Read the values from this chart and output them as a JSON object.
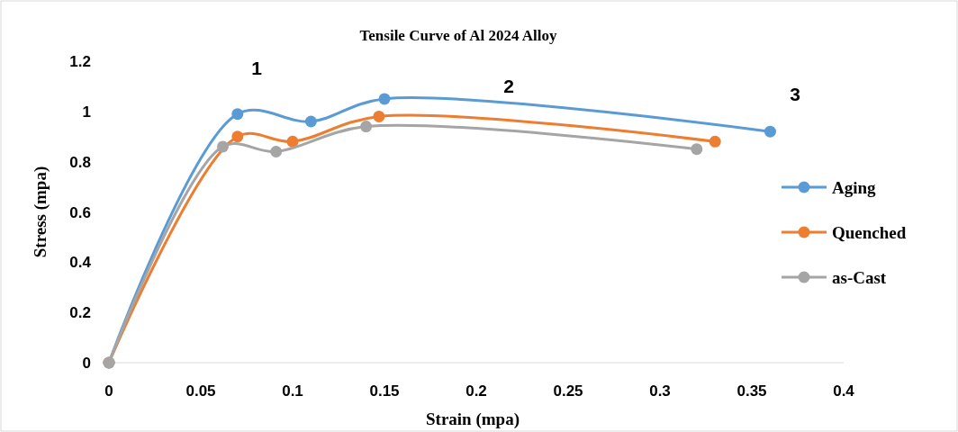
{
  "chart_data": {
    "type": "line",
    "title": "Tensile Curve of Al 2024 Alloy",
    "xlabel": "Strain (mpa)",
    "ylabel": "Stress (mpa)",
    "xlim": [
      0,
      0.4
    ],
    "xticks": [
      0,
      0.05,
      0.1,
      0.15,
      0.2,
      0.25,
      0.3,
      0.35,
      0.4
    ],
    "ylim": [
      0,
      1.2
    ],
    "yticks": [
      0,
      0.2,
      0.4,
      0.6,
      0.8,
      1,
      1.2
    ],
    "grid": false,
    "legend": "right",
    "marker": "circle",
    "line_style": "solid",
    "series": [
      {
        "name": "Aging",
        "color": "#5b9bd5",
        "x": [
          0,
          0.07,
          0.11,
          0.15,
          0.36
        ],
        "values": [
          0,
          0.99,
          0.96,
          1.05,
          0.92
        ]
      },
      {
        "name": "Quenched",
        "color": "#ed7d31",
        "x": [
          0,
          0.07,
          0.1,
          0.147,
          0.33
        ],
        "values": [
          0,
          0.9,
          0.88,
          0.98,
          0.88
        ]
      },
      {
        "name": "as-Cast",
        "color": "#a5a5a5",
        "x": [
          0,
          0.062,
          0.091,
          0.14,
          0.32
        ],
        "values": [
          0,
          0.86,
          0.84,
          0.94,
          0.85
        ]
      }
    ],
    "annotations": [
      "1",
      "2",
      "3"
    ]
  }
}
